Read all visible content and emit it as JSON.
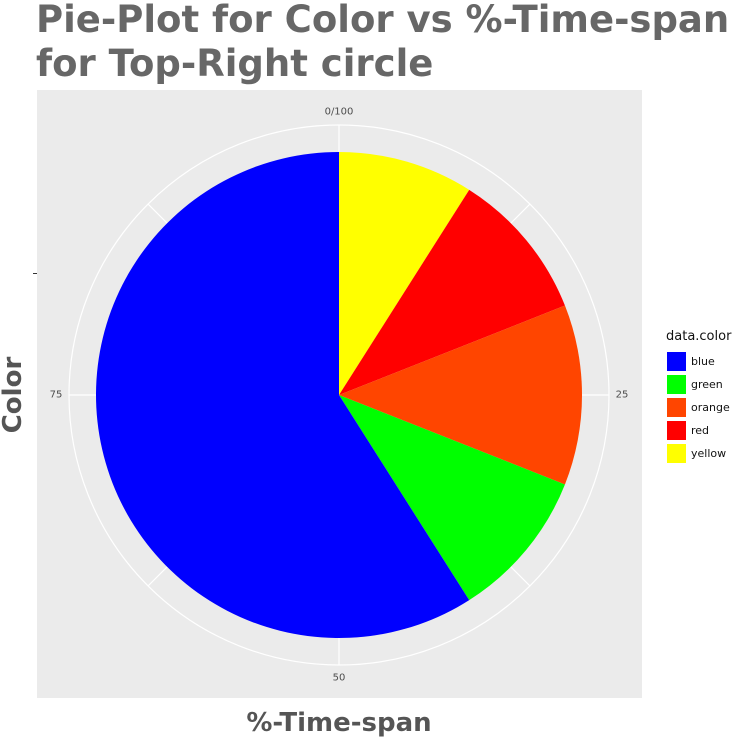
{
  "title_lines": [
    "Pie-Plot for Color vs %-Time-span",
    "for Top-Right circle"
  ],
  "chart_data": {
    "type": "pie",
    "title": "Pie-Plot for Color vs %-Time-span for Top-Right circle",
    "xlabel": "%-Time-span",
    "ylabel": "Color",
    "legend_title": "data.color",
    "legend_position": "right",
    "grid": true,
    "coord": "polar",
    "theta_ticks": [
      {
        "label": "0/100",
        "value": 0
      },
      {
        "label": "25",
        "value": 25
      },
      {
        "label": "50",
        "value": 50
      },
      {
        "label": "75",
        "value": 75
      }
    ],
    "slices": [
      {
        "label": "yellow",
        "value": 9,
        "color": "#ffff00"
      },
      {
        "label": "red",
        "value": 10,
        "color": "#ff0000"
      },
      {
        "label": "orange",
        "value": 12,
        "color": "#ff4500"
      },
      {
        "label": "green",
        "value": 10,
        "color": "#00ff00"
      },
      {
        "label": "blue",
        "value": 59,
        "color": "#0000ff"
      }
    ],
    "legend": [
      {
        "label": "blue",
        "color": "#0000ff"
      },
      {
        "label": "green",
        "color": "#00ff00"
      },
      {
        "label": "orange",
        "color": "#ff4500"
      },
      {
        "label": "red",
        "color": "#ff0000"
      },
      {
        "label": "yellow",
        "color": "#ffff00"
      }
    ]
  }
}
